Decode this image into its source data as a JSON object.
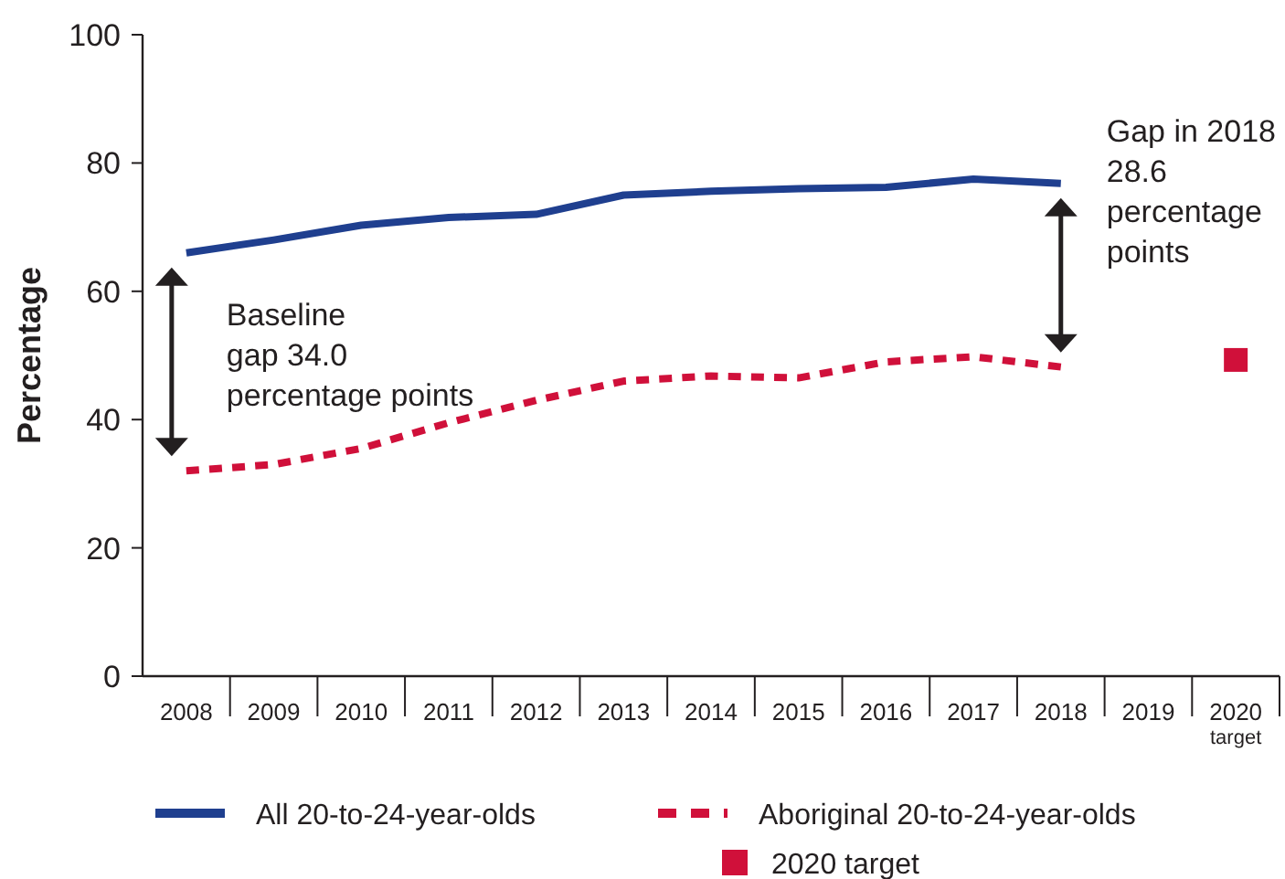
{
  "chart_data": {
    "type": "line",
    "ylabel": "Percentage",
    "categories": [
      "2008",
      "2009",
      "2010",
      "2011",
      "2012",
      "2013",
      "2014",
      "2015",
      "2016",
      "2017",
      "2018",
      "2019",
      "2020$_{target}$"
    ],
    "ylim": [
      0,
      100
    ],
    "yticks": [
      0,
      20,
      40,
      60,
      80,
      100
    ],
    "grid": false,
    "legend": "bottom",
    "marker": "none",
    "series": [
      {
        "name": "All 20-to-24-year-olds",
        "color": "#1f3f8f",
        "line_style": "solid",
        "values": [
          66.0,
          68.0,
          70.3,
          71.5,
          72.0,
          75.0,
          75.6,
          76.0,
          76.2,
          77.5,
          76.8,
          null,
          null
        ]
      },
      {
        "name": "Aboriginal 20-to-24-year-olds",
        "color": "#d0103a",
        "line_style": "dashed",
        "values": [
          32.0,
          33.0,
          35.5,
          39.5,
          43.0,
          46.0,
          46.8,
          46.5,
          49.0,
          49.8,
          48.2,
          null,
          null
        ]
      },
      {
        "name": "2020 target",
        "type": "scatter",
        "marker": "square",
        "color": "#d0103a",
        "values": [
          null,
          null,
          null,
          null,
          null,
          null,
          null,
          null,
          null,
          null,
          null,
          null,
          49.3
        ]
      }
    ],
    "annotations": [
      "Baseline\ngap 34.0\npercentage points",
      "Gap in 2018\n28.6\npercentage\npoints"
    ]
  }
}
